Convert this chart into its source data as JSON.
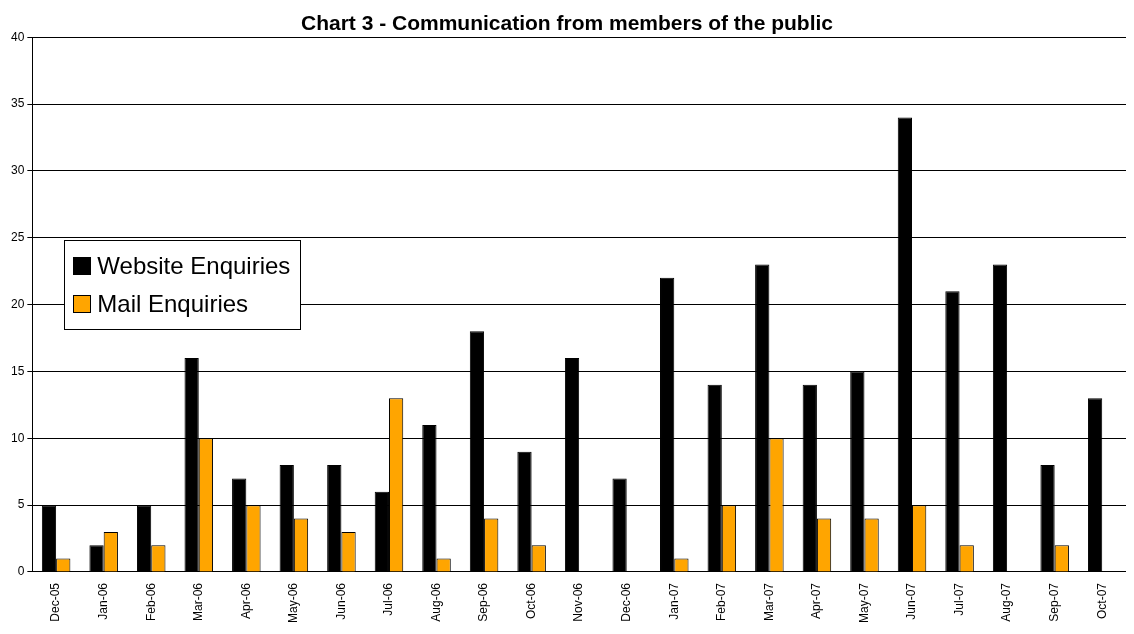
{
  "chart_data": {
    "type": "bar",
    "title": "Chart 3 - Communication from members of the public",
    "categories": [
      "Dec-05",
      "Jan-06",
      "Feb-06",
      "Mar-06",
      "Apr-06",
      "May-06",
      "Jun-06",
      "Jul-06",
      "Aug-06",
      "Sep-06",
      "Oct-06",
      "Nov-06",
      "Dec-06",
      "Jan-07",
      "Feb-07",
      "Mar-07",
      "Apr-07",
      "May-07",
      "Jun-07",
      "Jul-07",
      "Aug-07",
      "Sep-07",
      "Oct-07"
    ],
    "series": [
      {
        "name": "Website Enquiries",
        "color": "#000000",
        "values": [
          5,
          2,
          5,
          16,
          7,
          8,
          8,
          6,
          11,
          18,
          9,
          16,
          7,
          22,
          14,
          23,
          14,
          15,
          34,
          21,
          23,
          8,
          13
        ]
      },
      {
        "name": "Mail Enquiries",
        "color": "#ffa500",
        "values": [
          1,
          3,
          2,
          10,
          5,
          4,
          3,
          13,
          1,
          4,
          2,
          null,
          null,
          1,
          5,
          10,
          4,
          4,
          5,
          2,
          null,
          2,
          null
        ]
      }
    ],
    "ylim": [
      0,
      40
    ],
    "yticks": [
      0,
      5,
      10,
      15,
      20,
      25,
      30,
      35,
      40
    ],
    "grid": "y",
    "legend": "left"
  }
}
